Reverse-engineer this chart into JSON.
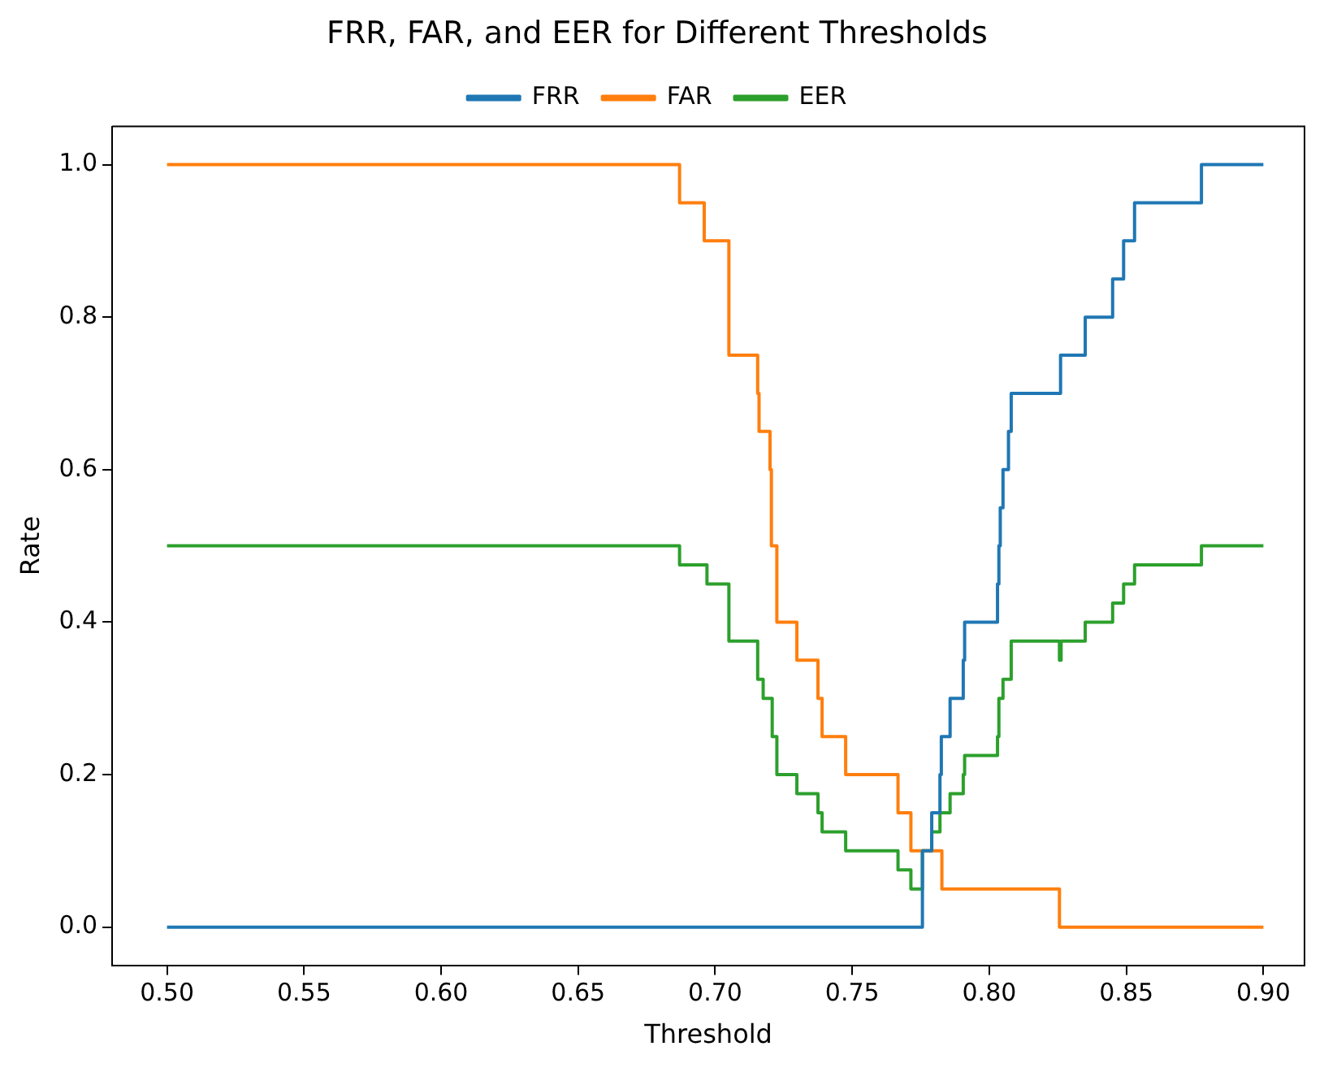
{
  "chart_data": {
    "type": "step",
    "title": "FRR, FAR, and EER for Different Thresholds",
    "xlabel": "Threshold",
    "ylabel": "Rate",
    "xlim": [
      0.48,
      0.915
    ],
    "ylim": [
      -0.05,
      1.05
    ],
    "xticks": [
      {
        "value": 0.5,
        "label": "0.50"
      },
      {
        "value": 0.55,
        "label": "0.55"
      },
      {
        "value": 0.6,
        "label": "0.60"
      },
      {
        "value": 0.65,
        "label": "0.65"
      },
      {
        "value": 0.7,
        "label": "0.70"
      },
      {
        "value": 0.75,
        "label": "0.75"
      },
      {
        "value": 0.8,
        "label": "0.80"
      },
      {
        "value": 0.85,
        "label": "0.85"
      },
      {
        "value": 0.9,
        "label": "0.90"
      }
    ],
    "yticks": [
      {
        "value": 0,
        "label": "0.0"
      },
      {
        "value": 0.2,
        "label": "0.2"
      },
      {
        "value": 0.4,
        "label": "0.4"
      },
      {
        "value": 0.6,
        "label": "0.6"
      },
      {
        "value": 0.8,
        "label": "0.8"
      },
      {
        "value": 1,
        "label": "1.0"
      }
    ],
    "grid": false,
    "legend": "top",
    "line_style": "solid",
    "marker": "none",
    "series": [
      {
        "name": "FRR",
        "color": "#1f77b4",
        "x": [
          0.5,
          0.7756,
          0.779,
          0.782,
          0.7825,
          0.7857,
          0.7905,
          0.791,
          0.803,
          0.8035,
          0.804,
          0.805,
          0.807,
          0.808,
          0.826,
          0.835,
          0.845,
          0.849,
          0.853,
          0.8774,
          0.9
        ],
        "values": [
          0,
          0.1,
          0.15,
          0.2,
          0.25,
          0.3,
          0.35,
          0.4,
          0.45,
          0.5,
          0.55,
          0.6,
          0.65,
          0.7,
          0.75,
          0.8,
          0.85,
          0.9,
          0.95,
          1,
          1
        ]
      },
      {
        "name": "FAR",
        "color": "#ff7f0e",
        "x": [
          0.5,
          0.687,
          0.696,
          0.705,
          0.7155,
          0.716,
          0.72,
          0.7205,
          0.7225,
          0.7298,
          0.7375,
          0.739,
          0.7476,
          0.7667,
          0.7714,
          0.7827,
          0.8256,
          0.9
        ],
        "values": [
          1,
          0.95,
          0.9,
          0.75,
          0.7,
          0.65,
          0.6,
          0.5,
          0.4,
          0.35,
          0.3,
          0.25,
          0.2,
          0.15,
          0.1,
          0.05,
          0,
          0
        ]
      },
      {
        "name": "EER",
        "color": "#2ca02c",
        "x": [
          0.5,
          0.687,
          0.697,
          0.705,
          0.7155,
          0.7175,
          0.7208,
          0.7225,
          0.7298,
          0.7375,
          0.739,
          0.7476,
          0.7667,
          0.7714,
          0.7756,
          0.779,
          0.782,
          0.7857,
          0.7905,
          0.791,
          0.803,
          0.8035,
          0.805,
          0.808,
          0.8256,
          0.8262,
          0.835,
          0.845,
          0.849,
          0.853,
          0.8774,
          0.9
        ],
        "values": [
          0.5,
          0.475,
          0.45,
          0.375,
          0.325,
          0.3,
          0.25,
          0.2,
          0.175,
          0.15,
          0.125,
          0.1,
          0.075,
          0.05,
          0.1,
          0.125,
          0.15,
          0.175,
          0.2,
          0.225,
          0.25,
          0.3,
          0.325,
          0.375,
          0.35,
          0.375,
          0.4,
          0.425,
          0.45,
          0.475,
          0.5,
          0.5
        ]
      }
    ]
  }
}
